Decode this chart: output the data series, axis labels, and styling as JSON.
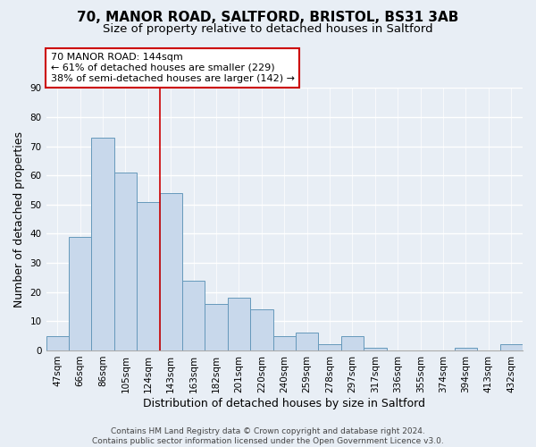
{
  "title": "70, MANOR ROAD, SALTFORD, BRISTOL, BS31 3AB",
  "subtitle": "Size of property relative to detached houses in Saltford",
  "xlabel": "Distribution of detached houses by size in Saltford",
  "ylabel": "Number of detached properties",
  "categories": [
    "47sqm",
    "66sqm",
    "86sqm",
    "105sqm",
    "124sqm",
    "143sqm",
    "163sqm",
    "182sqm",
    "201sqm",
    "220sqm",
    "240sqm",
    "259sqm",
    "278sqm",
    "297sqm",
    "317sqm",
    "336sqm",
    "355sqm",
    "374sqm",
    "394sqm",
    "413sqm",
    "432sqm"
  ],
  "values": [
    5,
    39,
    73,
    61,
    51,
    54,
    24,
    16,
    18,
    14,
    5,
    6,
    2,
    5,
    1,
    0,
    0,
    0,
    1,
    0,
    2
  ],
  "bar_color": "#c8d8eb",
  "bar_edge_color": "#6699bb",
  "highlight_line_index": 5,
  "highlight_line_color": "#cc0000",
  "annotation_title": "70 MANOR ROAD: 144sqm",
  "annotation_line1": "← 61% of detached houses are smaller (229)",
  "annotation_line2": "38% of semi-detached houses are larger (142) →",
  "annotation_box_color": "#ffffff",
  "annotation_box_edge": "#cc0000",
  "ylim": [
    0,
    90
  ],
  "yticks": [
    0,
    10,
    20,
    30,
    40,
    50,
    60,
    70,
    80,
    90
  ],
  "footer1": "Contains HM Land Registry data © Crown copyright and database right 2024.",
  "footer2": "Contains public sector information licensed under the Open Government Licence v3.0.",
  "background_color": "#e8eef5",
  "grid_color": "#ffffff",
  "title_fontsize": 11,
  "subtitle_fontsize": 9.5,
  "axis_label_fontsize": 9,
  "tick_fontsize": 7.5,
  "footer_fontsize": 6.5,
  "annotation_fontsize": 8
}
